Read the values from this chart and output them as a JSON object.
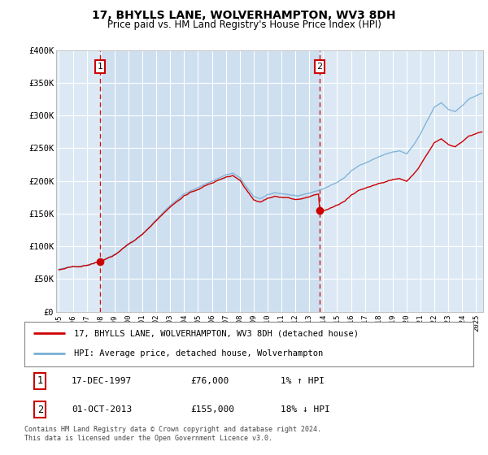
{
  "title": "17, BHYLLS LANE, WOLVERHAMPTON, WV3 8DH",
  "subtitle": "Price paid vs. HM Land Registry's House Price Index (HPI)",
  "title_fontsize": 10,
  "subtitle_fontsize": 8.5,
  "background_color": "#ffffff",
  "plot_bg_color": "#dce9f5",
  "grid_color": "#ffffff",
  "highlight_color": "#c8ddf0",
  "line_color_price": "#cc0000",
  "line_color_hpi": "#7ab0d4",
  "marker_color": "#cc0000",
  "sales": [
    {
      "label": "1",
      "year_float": 1997.958,
      "price": 76000
    },
    {
      "label": "2",
      "year_float": 2013.75,
      "price": 155000
    }
  ],
  "legend_entries": [
    {
      "color": "#cc0000",
      "text": "17, BHYLLS LANE, WOLVERHAMPTON, WV3 8DH (detached house)"
    },
    {
      "color": "#7ab0d4",
      "text": "HPI: Average price, detached house, Wolverhampton"
    }
  ],
  "table_rows": [
    {
      "num": "1",
      "date": "17-DEC-1997",
      "price": "£76,000",
      "hpi": "1% ↑ HPI"
    },
    {
      "num": "2",
      "date": "01-OCT-2013",
      "price": "£155,000",
      "hpi": "18% ↓ HPI"
    }
  ],
  "footnote1": "Contains HM Land Registry data © Crown copyright and database right 2024.",
  "footnote2": "This data is licensed under the Open Government Licence v3.0.",
  "ylim": [
    0,
    400000
  ],
  "yticks": [
    0,
    50000,
    100000,
    150000,
    200000,
    250000,
    300000,
    350000,
    400000
  ],
  "xlim_start": 1995.0,
  "xlim_end": 2025.5
}
